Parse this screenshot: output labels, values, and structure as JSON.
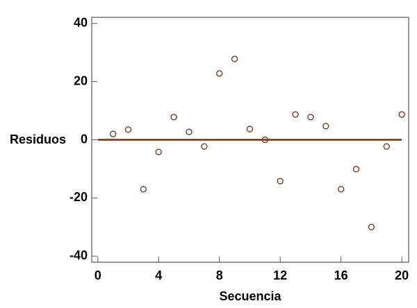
{
  "chart_data": {
    "type": "scatter",
    "xlabel": "Secuencia",
    "ylabel": "Residuos",
    "x": [
      1,
      2,
      3,
      4,
      5,
      6,
      7,
      8,
      9,
      10,
      11,
      12,
      13,
      14,
      15,
      16,
      17,
      18,
      19,
      20
    ],
    "values": [
      2.0,
      3.5,
      -17,
      -4.2,
      7.8,
      2.7,
      -2.3,
      22.8,
      27.8,
      3.7,
      0,
      -14.2,
      8.7,
      7.8,
      4.7,
      -17,
      -10.1,
      -30,
      -2.3,
      8.7
    ],
    "color": "#7a3b1e",
    "hline": 0,
    "hline_color": "#6b3418",
    "xlim": [
      -0.4,
      20.45
    ],
    "xticks": [
      0,
      4,
      8,
      12,
      16,
      20
    ],
    "ylim": [
      -42.1,
      42.1
    ],
    "yticks": [
      -40,
      -20,
      0,
      20,
      40
    ],
    "grid": false
  }
}
